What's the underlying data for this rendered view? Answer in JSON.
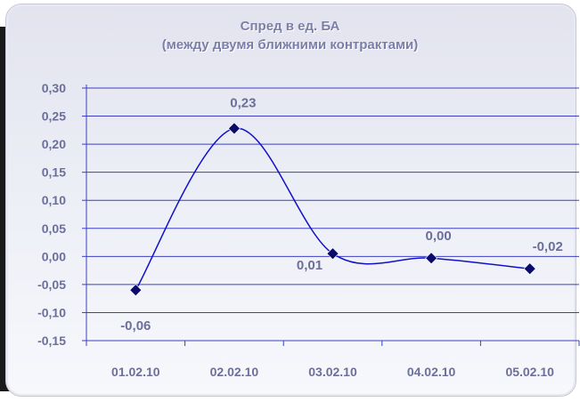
{
  "chart_data": {
    "type": "line",
    "title_line1": "Спред в ед. БА",
    "title_line2": "(между двумя ближними контрактами)",
    "categories": [
      "01.02.10",
      "02.02.10",
      "03.02.10",
      "04.02.10",
      "05.02.10"
    ],
    "series": [
      {
        "values": [
          -0.06,
          0.228,
          0.005,
          -0.003,
          -0.022
        ],
        "data_labels": [
          "-0,06",
          "0,23",
          "0,01",
          "0,00",
          "-0,02"
        ],
        "color": "#1010cc",
        "marker_color": "#0b0b6e",
        "marker": "diamond",
        "smooth": true
      }
    ],
    "ylim": [
      -0.15,
      0.3
    ],
    "y_ticks": [
      0.3,
      0.25,
      0.2,
      0.15,
      0.1,
      0.05,
      0.0,
      -0.05,
      -0.1,
      -0.15
    ],
    "y_tick_labels": [
      "0,30",
      "0,25",
      "0,20",
      "0,15",
      "0,10",
      "0,05",
      "0,00",
      "-0,05",
      "-0,10",
      "-0,15"
    ],
    "grid": true,
    "grid_color": "#3b3fc4",
    "xlabel": "",
    "ylabel": ""
  }
}
